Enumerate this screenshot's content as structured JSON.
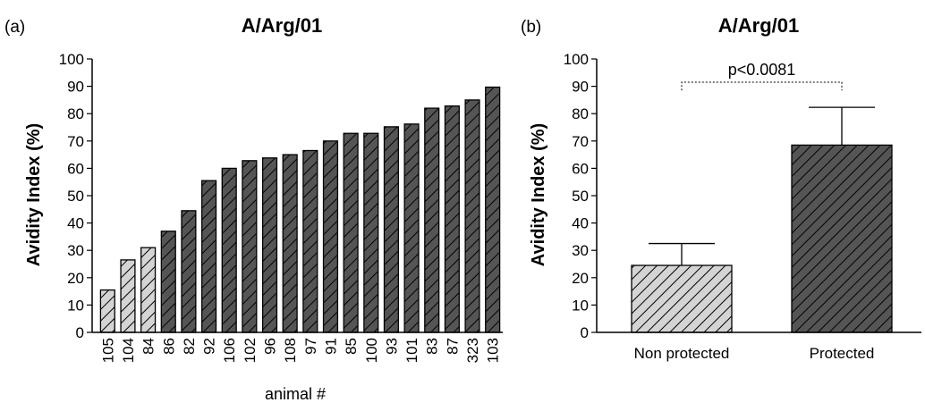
{
  "chart_data": [
    {
      "type": "bar",
      "panel_label": "(a)",
      "title": "A/Arg/01",
      "xlabel": "animal #",
      "ylabel": "Avidity Index (%)",
      "ylim": [
        0,
        100
      ],
      "yticks": [
        "0",
        "10",
        "20",
        "30",
        "40",
        "50",
        "60",
        "70",
        "80",
        "90",
        "100"
      ],
      "grid": false,
      "categories": [
        "105",
        "104",
        "84",
        "86",
        "82",
        "92",
        "106",
        "102",
        "96",
        "108",
        "97",
        "91",
        "85",
        "100",
        "93",
        "101",
        "83",
        "87",
        "323",
        "103"
      ],
      "values": [
        15.5,
        26.5,
        31,
        37,
        44.5,
        55.5,
        60,
        62.8,
        63.8,
        65,
        66.5,
        70,
        72.8,
        72.8,
        75.2,
        76.2,
        82,
        82.8,
        85,
        89.7
      ],
      "groups": [
        "Non protected",
        "Non protected",
        "Non protected",
        "Protected",
        "Protected",
        "Protected",
        "Protected",
        "Protected",
        "Protected",
        "Protected",
        "Protected",
        "Protected",
        "Protected",
        "Protected",
        "Protected",
        "Protected",
        "Protected",
        "Protected",
        "Protected",
        "Protected"
      ],
      "group_colors": {
        "Non protected": "#d4d4d4",
        "Protected": "#555555"
      }
    },
    {
      "type": "bar",
      "panel_label": "(b)",
      "title": "A/Arg/01",
      "xlabel": "",
      "ylabel": "Avidity Index (%)",
      "ylim": [
        0,
        100
      ],
      "yticks": [
        "0",
        "10",
        "20",
        "30",
        "40",
        "50",
        "60",
        "70",
        "80",
        "90",
        "100"
      ],
      "grid": false,
      "categories": [
        "Non protected",
        "Protected"
      ],
      "values": [
        24.5,
        68.5
      ],
      "error_upper": [
        32.5,
        82.3
      ],
      "colors": [
        "#d4d4d4",
        "#555555"
      ],
      "annotation": "p<0.0081"
    }
  ]
}
